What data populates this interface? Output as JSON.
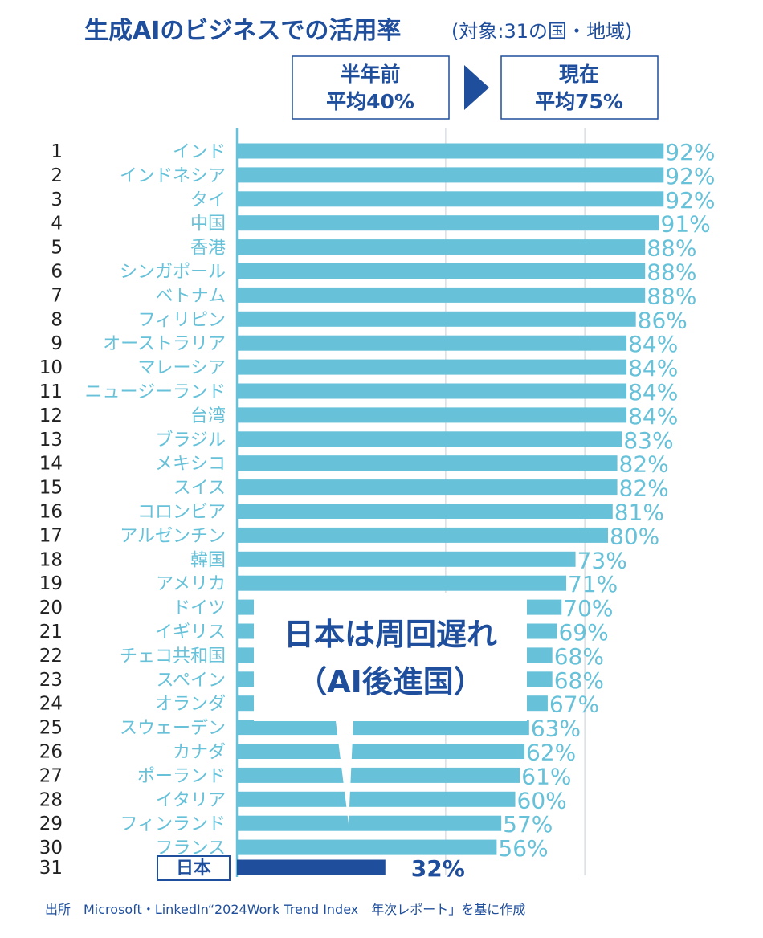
{
  "header": {
    "title": "生成AIのビジネスでの活用率",
    "subtitle": "(対象:31の国・地域)"
  },
  "summary": {
    "before_label": "半年前",
    "before_value": "平均40%",
    "after_label": "現在",
    "after_value": "平均75%"
  },
  "callout": {
    "line1": "日本は周回遅れ",
    "line2": "（AI後進国）"
  },
  "source": "出所　Microsoft・LinkedIn“2024Work Trend Index　年次レポート」を基に作成",
  "colors": {
    "bar": "#66c1d9",
    "highlight": "#1f4e9c",
    "grid": "#cfd8de"
  },
  "chart_data": {
    "type": "bar",
    "orientation": "horizontal",
    "xlim": [
      0,
      100
    ],
    "grid": true,
    "highlight_category": "日本",
    "ranks": [
      "1",
      "2",
      "3",
      "4",
      "5",
      "6",
      "7",
      "8",
      "9",
      "10",
      "11",
      "12",
      "13",
      "14",
      "15",
      "16",
      "17",
      "18",
      "19",
      "20",
      "21",
      "22",
      "23",
      "24",
      "25",
      "26",
      "27",
      "28",
      "29",
      "30",
      "31"
    ],
    "categories": [
      "インド",
      "インドネシア",
      "タイ",
      "中国",
      "香港",
      "シンガポール",
      "ベトナム",
      "フィリピン",
      "オーストラリア",
      "マレーシア",
      "ニュージーランド",
      "台湾",
      "ブラジル",
      "メキシコ",
      "スイス",
      "コロンビア",
      "アルゼンチン",
      "韓国",
      "アメリカ",
      "ドイツ",
      "イギリス",
      "チェコ共和国",
      "スペイン",
      "オランダ",
      "スウェーデン",
      "カナダ",
      "ポーランド",
      "イタリア",
      "フィンランド",
      "フランス",
      "日本"
    ],
    "values": [
      92,
      92,
      92,
      91,
      88,
      88,
      88,
      86,
      84,
      84,
      84,
      84,
      83,
      82,
      82,
      81,
      80,
      73,
      71,
      70,
      69,
      68,
      68,
      67,
      63,
      62,
      61,
      60,
      57,
      56,
      32
    ],
    "value_labels": [
      "92%",
      "92%",
      "92%",
      "91%",
      "88%",
      "88%",
      "88%",
      "86%",
      "84%",
      "84%",
      "84%",
      "84%",
      "83%",
      "82%",
      "82%",
      "81%",
      "80%",
      "73%",
      "71%",
      "70%",
      "69%",
      "68%",
      "68%",
      "67%",
      "63%",
      "62%",
      "61%",
      "60%",
      "57%",
      "56%",
      "32%"
    ]
  }
}
